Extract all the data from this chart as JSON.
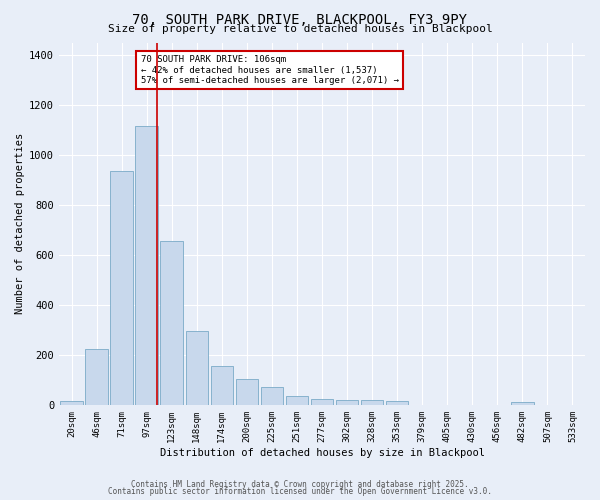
{
  "title": "70, SOUTH PARK DRIVE, BLACKPOOL, FY3 9PY",
  "subtitle": "Size of property relative to detached houses in Blackpool",
  "xlabel": "Distribution of detached houses by size in Blackpool",
  "ylabel": "Number of detached properties",
  "bar_color": "#c8d8ec",
  "bar_edge_color": "#7aaac8",
  "background_color": "#e8eef8",
  "grid_color": "#ffffff",
  "bins": [
    "20sqm",
    "46sqm",
    "71sqm",
    "97sqm",
    "123sqm",
    "148sqm",
    "174sqm",
    "200sqm",
    "225sqm",
    "251sqm",
    "277sqm",
    "302sqm",
    "328sqm",
    "353sqm",
    "379sqm",
    "405sqm",
    "430sqm",
    "456sqm",
    "482sqm",
    "507sqm",
    "533sqm"
  ],
  "values": [
    15,
    225,
    935,
    1115,
    655,
    295,
    155,
    105,
    70,
    35,
    25,
    20,
    20,
    15,
    0,
    0,
    0,
    0,
    10,
    0,
    0
  ],
  "ylim": [
    0,
    1450
  ],
  "yticks": [
    0,
    200,
    400,
    600,
    800,
    1000,
    1200,
    1400
  ],
  "red_line_x": 3.42,
  "annotation_text": "70 SOUTH PARK DRIVE: 106sqm\n← 42% of detached houses are smaller (1,537)\n57% of semi-detached houses are larger (2,071) →",
  "annotation_box_color": "#ffffff",
  "annotation_box_edge": "#cc0000",
  "red_line_color": "#cc0000",
  "footer_line1": "Contains HM Land Registry data © Crown copyright and database right 2025.",
  "footer_line2": "Contains public sector information licensed under the Open Government Licence v3.0."
}
